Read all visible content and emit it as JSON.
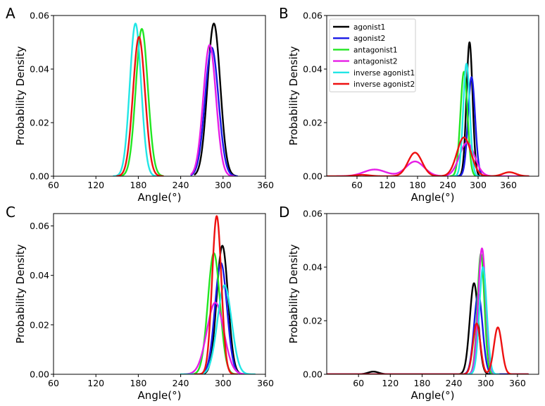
{
  "colors": {
    "agonist1": "#000000",
    "agonist2": "#1a1ae6",
    "antagonist1": "#22e622",
    "antagonist2": "#e61ee6",
    "inverse agonist1": "#22e6e6",
    "inverse agonist2": "#ee1111"
  },
  "chart_data": [
    {
      "type": "line",
      "panel": "A",
      "xlabel": "Angle(°)",
      "ylabel": "Probability Density",
      "xlim": [
        60,
        360
      ],
      "ylim": [
        0,
        0.06
      ],
      "xticks": [
        60,
        120,
        180,
        240,
        300,
        360
      ],
      "yticks": [
        0.0,
        0.02,
        0.04,
        0.06
      ],
      "ytick_labels": [
        "0.00",
        "0.02",
        "0.04",
        "0.06"
      ],
      "grid": false,
      "series": [
        {
          "name": "agonist1",
          "peaks": [
            [
              287,
              0.057,
              9
            ]
          ],
          "range": [
            260,
            318
          ]
        },
        {
          "name": "agonist2",
          "peaks": [
            [
              284,
              0.048,
              9.5
            ]
          ],
          "range": [
            255,
            320
          ]
        },
        {
          "name": "antagonist1",
          "peaks": [
            [
              185,
              0.055,
              8.5
            ]
          ],
          "range": [
            150,
            215
          ]
        },
        {
          "name": "antagonist2",
          "peaks": [
            [
              281,
              0.049,
              9
            ]
          ],
          "range": [
            255,
            315
          ]
        },
        {
          "name": "inverse agonist1",
          "peaks": [
            [
              176,
              0.057,
              8
            ]
          ],
          "range": [
            145,
            205
          ]
        },
        {
          "name": "inverse agonist2",
          "peaks": [
            [
              181,
              0.052,
              8.5
            ]
          ],
          "range": [
            150,
            215
          ]
        }
      ]
    },
    {
      "type": "line",
      "panel": "B",
      "xlabel": "Angle(°)",
      "ylabel": "Probability Density",
      "xlim": [
        0,
        420
      ],
      "ylim": [
        0,
        0.06
      ],
      "xticks": [
        60,
        120,
        180,
        240,
        300,
        360
      ],
      "yticks": [
        0.0,
        0.02,
        0.04,
        0.06
      ],
      "ytick_labels": [
        "0.00",
        "0.02",
        "0.04",
        "0.06"
      ],
      "grid": false,
      "legend_position": "top-left",
      "series": [
        {
          "name": "agonist1",
          "peaks": [
            [
              283,
              0.05,
              6
            ]
          ],
          "range": [
            255,
            310
          ]
        },
        {
          "name": "agonist2",
          "peaks": [
            [
              287,
              0.037,
              7
            ]
          ],
          "range": [
            255,
            315
          ]
        },
        {
          "name": "antagonist1",
          "peaks": [
            [
              272,
              0.039,
              7
            ]
          ],
          "range": [
            245,
            300
          ]
        },
        {
          "name": "antagonist2",
          "peaks": [
            [
              95,
              0.0025,
              22
            ],
            [
              175,
              0.0055,
              18
            ],
            [
              278,
              0.0125,
              15
            ]
          ],
          "range": [
            20,
            400
          ]
        },
        {
          "name": "inverse agonist1",
          "peaks": [
            [
              277,
              0.042,
              6.5
            ]
          ],
          "range": [
            250,
            305
          ]
        },
        {
          "name": "inverse agonist2",
          "peaks": [
            [
              70,
              0.0005,
              15
            ],
            [
              175,
              0.0088,
              14
            ],
            [
              272,
              0.0145,
              14
            ],
            [
              362,
              0.0015,
              13
            ]
          ],
          "range": [
            0,
            400
          ]
        }
      ]
    },
    {
      "type": "line",
      "panel": "C",
      "xlabel": "Angle(°)",
      "ylabel": "Probability Density",
      "xlim": [
        60,
        360
      ],
      "ylim": [
        0,
        0.065
      ],
      "xticks": [
        60,
        120,
        180,
        240,
        300,
        360
      ],
      "yticks": [
        0.0,
        0.02,
        0.04,
        0.06
      ],
      "ytick_labels": [
        "0.00",
        "0.02",
        "0.04",
        "0.06"
      ],
      "grid": false,
      "series": [
        {
          "name": "agonist1",
          "peaks": [
            [
              299,
              0.052,
              8
            ]
          ],
          "range": [
            260,
            330
          ]
        },
        {
          "name": "agonist2",
          "peaks": [
            [
              297,
              0.045,
              8.5
            ]
          ],
          "range": [
            260,
            330
          ]
        },
        {
          "name": "antagonist1",
          "peaks": [
            [
              287,
              0.049,
              8.5
            ]
          ],
          "range": [
            255,
            320
          ]
        },
        {
          "name": "antagonist2",
          "peaks": [
            [
              289,
              0.029,
              12
            ]
          ],
          "range": [
            245,
            335
          ]
        },
        {
          "name": "inverse agonist1",
          "peaks": [
            [
              302,
              0.036,
              10
            ]
          ],
          "range": [
            240,
            345
          ]
        },
        {
          "name": "inverse agonist2",
          "peaks": [
            [
              291,
              0.064,
              6.5
            ]
          ],
          "range": [
            260,
            320
          ]
        }
      ]
    },
    {
      "type": "line",
      "panel": "D",
      "xlabel": "Angle(°)",
      "ylabel": "Probability Density",
      "xlim": [
        0,
        400
      ],
      "ylim": [
        0,
        0.06
      ],
      "xticks": [
        60,
        120,
        180,
        240,
        300,
        360
      ],
      "yticks": [
        0.0,
        0.02,
        0.04,
        0.06
      ],
      "ytick_labels": [
        "0.00",
        "0.02",
        "0.04",
        "0.06"
      ],
      "grid": false,
      "series": [
        {
          "name": "agonist1",
          "peaks": [
            [
              88,
              0.001,
              10
            ],
            [
              278,
              0.034,
              8
            ]
          ],
          "range": [
            0,
            380
          ]
        },
        {
          "name": "agonist2",
          "peaks": [
            [
              286,
              0.03,
              8
            ]
          ],
          "range": [
            0,
            380
          ]
        },
        {
          "name": "antagonist1",
          "peaks": [
            [
              291,
              0.045,
              6.5
            ]
          ],
          "range": [
            250,
            320
          ]
        },
        {
          "name": "antagonist2",
          "peaks": [
            [
              293,
              0.047,
              7
            ]
          ],
          "range": [
            255,
            325
          ]
        },
        {
          "name": "inverse agonist1",
          "peaks": [
            [
              295,
              0.04,
              7
            ]
          ],
          "range": [
            255,
            325
          ]
        },
        {
          "name": "inverse agonist2",
          "peaks": [
            [
              283,
              0.019,
              7
            ],
            [
              323,
              0.0175,
              7.5
            ]
          ],
          "range": [
            0,
            380
          ]
        }
      ]
    }
  ]
}
